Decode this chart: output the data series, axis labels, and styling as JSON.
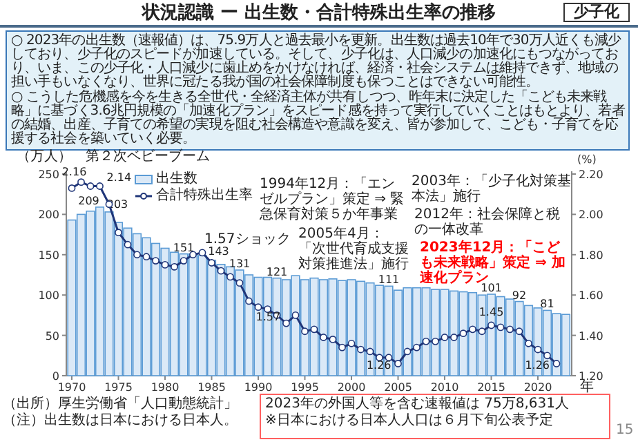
{
  "chart_data": {
    "type": "bar",
    "title": "状況認識 ー 出生数・合計特殊出生率の推移",
    "annotations": [
      "少子化",
      "○ 2023年の出生数（速報値）は、75.9万人と過去最小を更新。出生数は過去10年で30万人近くも減少しており、少子化のスピードが加速している。そして、少子化は、人口減少の加速化にもつながっており、いま、この少子化・人口減少に歯止めをかけなければ、経済・社会システムは維持できず、地域の担い手もいなくなり、世界に冠たる我が国の社会保障制度も保つことはできない可能性。",
      "○ こうした危機感を今を生きる全世代・全経済主体が共有しつつ、昨年末に決定した「こども未来戦略」に基づく3.6兆円規模の「加速化プラン」をスピード感を持って実行していくことはもとより、若者の結婚、出産、子育ての希望の実現を阻む社会構造や意識を変え、皆が参加して、こども・子育てを応援する社会を築いていく必要。",
      "第２次ベビーブーム",
      "1.57ショック",
      "1994年12月：「エンゼルプラン」策定 ⇒ 緊急保育対策５か年事業",
      "2003年：「少子化対策基本法」施行",
      "2005年4月：「次世代育成支援対策推進法」施行",
      "2012年：社会保障と税の一体改革",
      "2023年12月：「こども未来戦略」策定 ⇒ 加速化プラン",
      "（出所）厚生労働省「人口動態統計」",
      "（注）出生数は日本における日本人。",
      "2023年の外国人等を含む速報値は 75万8,631人",
      "※日本における日本人人口は６月下旬公表予定",
      "15"
    ],
    "categories": [
      "1970",
      null,
      null,
      null,
      null,
      "1975",
      null,
      null,
      null,
      null,
      "1980",
      null,
      null,
      null,
      null,
      "1985",
      null,
      null,
      null,
      null,
      "1990",
      null,
      null,
      null,
      null,
      "1995",
      null,
      null,
      null,
      null,
      "2000",
      null,
      null,
      null,
      null,
      "2005",
      null,
      null,
      null,
      null,
      "2010",
      null,
      null,
      null,
      null,
      "2015",
      null,
      null,
      null,
      null,
      "2020",
      null,
      null,
      null
    ],
    "series": [
      {
        "name": "出生数",
        "color": "#dbe9f7",
        "values": [
          193,
          200,
          204,
          209,
          203,
          190,
          183,
          176,
          171,
          164,
          158,
          153,
          151,
          151,
          149,
          143,
          138,
          135,
          131,
          125,
          122,
          122,
          121,
          119,
          124,
          119,
          121,
          119,
          120,
          118,
          119,
          117,
          115,
          112,
          111,
          106,
          109,
          109,
          109,
          107,
          107,
          105,
          104,
          103,
          100,
          101,
          98,
          95,
          92,
          87,
          84,
          81,
          77,
          76
        ],
        "value_labels": [
          null,
          null,
          null,
          "209",
          "203",
          null,
          null,
          null,
          null,
          null,
          null,
          null,
          "151",
          null,
          null,
          "143",
          null,
          null,
          "131",
          null,
          null,
          null,
          "121",
          null,
          null,
          null,
          null,
          null,
          null,
          null,
          null,
          null,
          null,
          null,
          "111",
          null,
          null,
          null,
          null,
          null,
          null,
          null,
          null,
          null,
          null,
          "101",
          null,
          null,
          "92",
          null,
          null,
          "81",
          null,
          null
        ]
      },
      {
        "name": "合計特殊出生率",
        "type": "line",
        "axis": "y2",
        "color": "#1f3578",
        "values": [
          2.13,
          2.16,
          2.14,
          2.14,
          2.05,
          1.91,
          1.85,
          1.8,
          1.79,
          1.77,
          1.75,
          1.74,
          1.77,
          1.8,
          1.81,
          1.76,
          1.72,
          1.69,
          1.66,
          1.57,
          1.54,
          1.53,
          1.5,
          1.46,
          1.5,
          1.42,
          1.43,
          1.39,
          1.38,
          1.34,
          1.36,
          1.33,
          1.32,
          1.29,
          1.29,
          1.26,
          1.32,
          1.34,
          1.37,
          1.37,
          1.39,
          1.39,
          1.41,
          1.43,
          1.42,
          1.45,
          1.44,
          1.43,
          1.42,
          1.36,
          1.33,
          1.3,
          1.26,
          null
        ],
        "value_labels": [
          null,
          "2.16",
          null,
          "2.14",
          null,
          null,
          null,
          null,
          null,
          null,
          null,
          null,
          null,
          null,
          null,
          null,
          null,
          null,
          null,
          "1.57",
          null,
          null,
          null,
          null,
          null,
          null,
          null,
          null,
          null,
          null,
          null,
          null,
          null,
          null,
          null,
          "1.26",
          null,
          null,
          null,
          null,
          null,
          null,
          null,
          null,
          null,
          "1.45",
          null,
          null,
          null,
          null,
          null,
          null,
          "1.26",
          null
        ]
      }
    ],
    "ylim": [
      0,
      250
    ],
    "yticks": [
      0,
      50,
      100,
      150,
      200,
      250
    ],
    "y2lim": [
      1.2,
      2.2
    ],
    "y2ticks": [
      {
        "value": 1.2,
        "label": "1.20"
      },
      {
        "value": 1.4,
        "label": "1.40"
      },
      {
        "value": 1.6,
        "label": "1.60"
      },
      {
        "value": 1.8,
        "label": "1.80"
      },
      {
        "value": 2.0,
        "label": "2.00"
      },
      {
        "value": 2.2,
        "label": "2.20"
      }
    ],
    "ylabel": "（万人）",
    "y2label": "(%)",
    "xlabel": "年",
    "legend": "top left",
    "marker": "circle",
    "grid": false
  }
}
